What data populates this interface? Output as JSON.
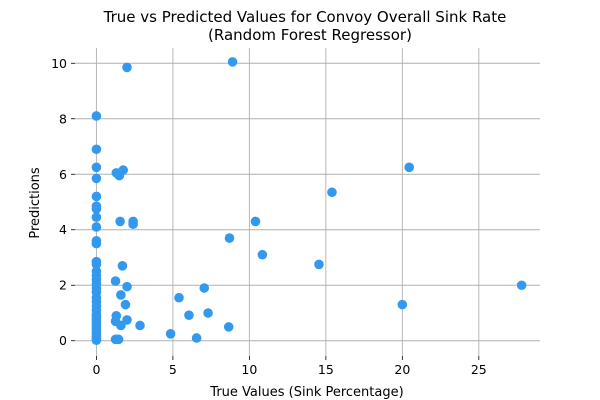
{
  "chart_data": {
    "type": "scatter",
    "title": "True vs Predicted Values for Convoy Overall Sink Rate",
    "subtitle": "(Random Forest Regressor)",
    "xlabel": "True Values (Sink Percentage)",
    "ylabel": "Predictions",
    "xlim": [
      -1.4,
      29.0
    ],
    "ylim": [
      -0.55,
      10.55
    ],
    "xticks": [
      0,
      5,
      10,
      15,
      20,
      25
    ],
    "yticks": [
      0,
      2,
      4,
      6,
      8,
      10
    ],
    "grid": true,
    "marker_color": "#3399ee",
    "grid_color": "#b0b0b0",
    "points": [
      {
        "x": 0,
        "y": 8.1
      },
      {
        "x": 0,
        "y": 6.9
      },
      {
        "x": 0,
        "y": 6.25
      },
      {
        "x": 0,
        "y": 5.85
      },
      {
        "x": 0,
        "y": 5.2
      },
      {
        "x": 0,
        "y": 4.85
      },
      {
        "x": 0,
        "y": 4.75
      },
      {
        "x": 0,
        "y": 4.45
      },
      {
        "x": 0,
        "y": 4.1
      },
      {
        "x": 0,
        "y": 3.6
      },
      {
        "x": 0,
        "y": 3.5
      },
      {
        "x": 0,
        "y": 2.85
      },
      {
        "x": 0,
        "y": 2.75
      },
      {
        "x": 0,
        "y": 2.5
      },
      {
        "x": 0,
        "y": 2.35
      },
      {
        "x": 0,
        "y": 2.2
      },
      {
        "x": 0,
        "y": 2.05
      },
      {
        "x": 0,
        "y": 1.9
      },
      {
        "x": 0,
        "y": 1.75
      },
      {
        "x": 0,
        "y": 1.55
      },
      {
        "x": 0,
        "y": 1.4
      },
      {
        "x": 0,
        "y": 1.25
      },
      {
        "x": 0,
        "y": 1.1
      },
      {
        "x": 0,
        "y": 0.95
      },
      {
        "x": 0,
        "y": 0.85
      },
      {
        "x": 0,
        "y": 0.75
      },
      {
        "x": 0,
        "y": 0.65
      },
      {
        "x": 0,
        "y": 0.55
      },
      {
        "x": 0,
        "y": 0.45
      },
      {
        "x": 0,
        "y": 0.35
      },
      {
        "x": 0,
        "y": 0.25
      },
      {
        "x": 0,
        "y": 0.15
      },
      {
        "x": 0,
        "y": 0.08
      },
      {
        "x": 0,
        "y": 0.02
      },
      {
        "x": 1.3,
        "y": 6.05
      },
      {
        "x": 1.5,
        "y": 5.95
      },
      {
        "x": 1.75,
        "y": 6.15
      },
      {
        "x": 2.0,
        "y": 9.85
      },
      {
        "x": 8.9,
        "y": 10.05
      },
      {
        "x": 1.55,
        "y": 4.3
      },
      {
        "x": 2.4,
        "y": 4.3
      },
      {
        "x": 2.4,
        "y": 4.2
      },
      {
        "x": 1.7,
        "y": 2.7
      },
      {
        "x": 1.25,
        "y": 2.15
      },
      {
        "x": 2.0,
        "y": 1.95
      },
      {
        "x": 1.6,
        "y": 1.65
      },
      {
        "x": 1.9,
        "y": 1.3
      },
      {
        "x": 1.3,
        "y": 0.9
      },
      {
        "x": 1.25,
        "y": 0.7
      },
      {
        "x": 2.0,
        "y": 0.75
      },
      {
        "x": 1.6,
        "y": 0.55
      },
      {
        "x": 2.85,
        "y": 0.55
      },
      {
        "x": 1.25,
        "y": 0.05
      },
      {
        "x": 1.45,
        "y": 0.05
      },
      {
        "x": 4.85,
        "y": 0.25
      },
      {
        "x": 5.4,
        "y": 1.55
      },
      {
        "x": 6.05,
        "y": 0.92
      },
      {
        "x": 6.55,
        "y": 0.1
      },
      {
        "x": 7.05,
        "y": 1.9
      },
      {
        "x": 7.3,
        "y": 1.0
      },
      {
        "x": 8.65,
        "y": 0.5
      },
      {
        "x": 8.7,
        "y": 3.7
      },
      {
        "x": 10.4,
        "y": 4.3
      },
      {
        "x": 10.85,
        "y": 3.1
      },
      {
        "x": 14.55,
        "y": 2.75
      },
      {
        "x": 15.4,
        "y": 5.35
      },
      {
        "x": 20.0,
        "y": 1.3
      },
      {
        "x": 20.45,
        "y": 6.25
      },
      {
        "x": 27.8,
        "y": 2.0
      }
    ]
  }
}
